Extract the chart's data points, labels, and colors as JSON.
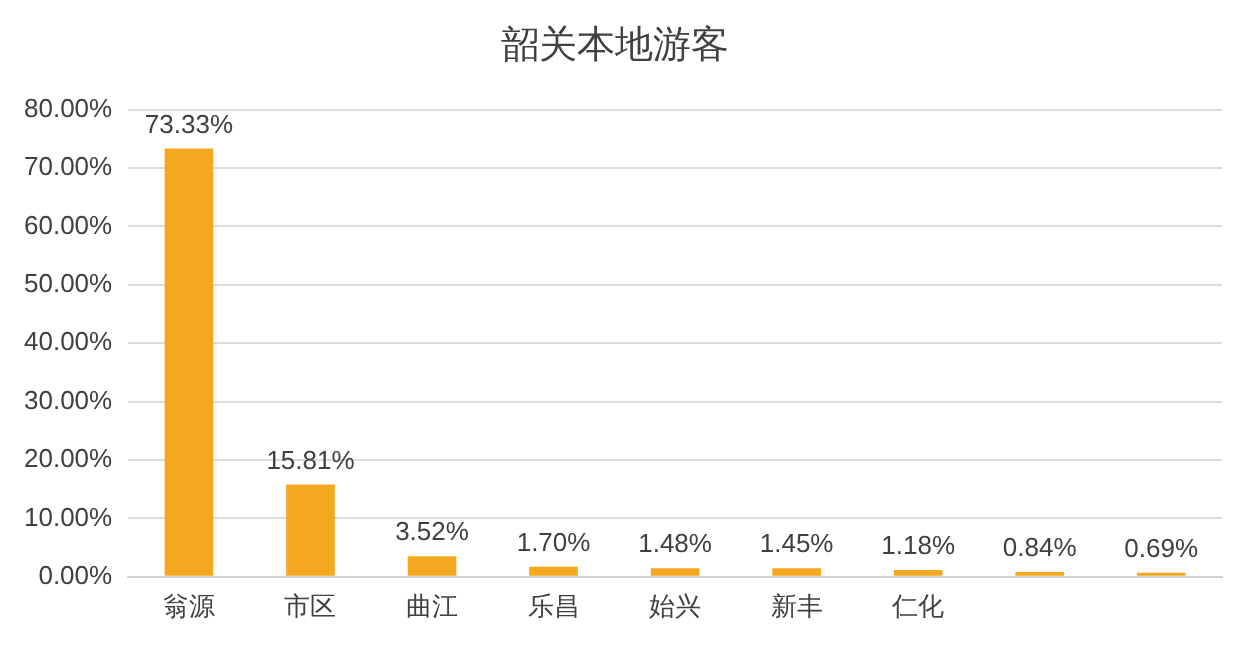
{
  "chart_data": {
    "type": "bar",
    "title": "韶关本地游客",
    "categories": [
      "翁源",
      "市区",
      "曲江",
      "乐昌",
      "始兴",
      "新丰",
      "仁化",
      null,
      null
    ],
    "values": [
      73.33,
      15.81,
      3.52,
      1.7,
      1.48,
      1.45,
      1.18,
      0.84,
      0.69
    ],
    "value_labels": [
      "73.33%",
      "15.81%",
      "3.52%",
      "1.70%",
      "1.48%",
      "1.45%",
      "1.18%",
      "0.84%",
      "0.69%"
    ],
    "color": "#f5a81f",
    "ylim": [
      0,
      80
    ],
    "yticks": [
      {
        "value": 0,
        "label": "0.00%"
      },
      {
        "value": 10,
        "label": "10.00%"
      },
      {
        "value": 20,
        "label": "20.00%"
      },
      {
        "value": 30,
        "label": "30.00%"
      },
      {
        "value": 40,
        "label": "40.00%"
      },
      {
        "value": 50,
        "label": "50.00%"
      },
      {
        "value": 60,
        "label": "60.00%"
      },
      {
        "value": 70,
        "label": "70.00%"
      },
      {
        "value": 80,
        "label": "80.00%"
      }
    ],
    "grid": "y",
    "legend": false
  }
}
